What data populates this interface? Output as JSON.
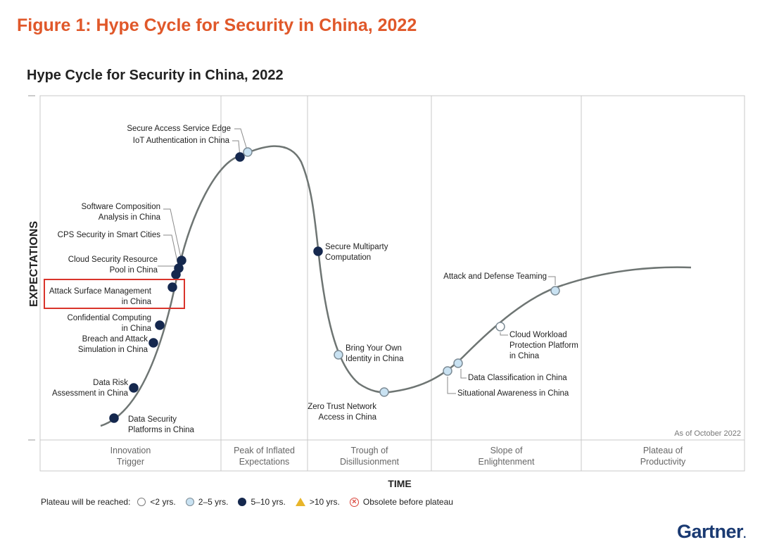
{
  "figure_title": "Figure 1: Hype Cycle for Security in China, 2022",
  "chart_data": {
    "type": "hype-cycle",
    "title": "Hype Cycle for Security in China, 2022",
    "ylabel": "EXPECTATIONS",
    "xlabel": "TIME",
    "as_of": "As of October 2022",
    "phases": [
      {
        "name": "Innovation Trigger",
        "lines": [
          "Innovation",
          "Trigger"
        ]
      },
      {
        "name": "Peak of Inflated Expectations",
        "lines": [
          "Peak of Inflated",
          "Expectations"
        ]
      },
      {
        "name": "Trough of Disillusionment",
        "lines": [
          "Trough of",
          "Disillusionment"
        ]
      },
      {
        "name": "Slope of Enlightenment",
        "lines": [
          "Slope of",
          "Enlightenment"
        ]
      },
      {
        "name": "Plateau of Productivity",
        "lines": [
          "Plateau of",
          "Productivity"
        ]
      }
    ],
    "technologies": [
      {
        "name": "Data Security Platforms in China",
        "lines": [
          "Data Security",
          "Platforms in China"
        ],
        "plateau": "5-10 yrs.",
        "phase": "Innovation Trigger",
        "highlighted": false
      },
      {
        "name": "Data Risk Assessment in China",
        "lines": [
          "Data Risk",
          "Assessment in China"
        ],
        "plateau": "5-10 yrs.",
        "phase": "Innovation Trigger",
        "highlighted": false
      },
      {
        "name": "Breach and Attack Simulation in China",
        "lines": [
          "Breach and Attack",
          "Simulation in China"
        ],
        "plateau": "5-10 yrs.",
        "phase": "Innovation Trigger",
        "highlighted": false
      },
      {
        "name": "Confidential Computing in China",
        "lines": [
          "Confidential Computing",
          "in China"
        ],
        "plateau": "5-10 yrs.",
        "phase": "Innovation Trigger",
        "highlighted": false
      },
      {
        "name": "Attack Surface Management in China",
        "lines": [
          "Attack Surface Management",
          "in China"
        ],
        "plateau": "5-10 yrs.",
        "phase": "Innovation Trigger",
        "highlighted": true
      },
      {
        "name": "Cloud Security Resource Pool in China",
        "lines": [
          "Cloud Security Resource",
          "Pool in China"
        ],
        "plateau": "5-10 yrs.",
        "phase": "Innovation Trigger",
        "highlighted": false
      },
      {
        "name": "CPS Security in Smart Cities",
        "lines": [
          "CPS Security in Smart Cities"
        ],
        "plateau": "5-10 yrs.",
        "phase": "Innovation Trigger",
        "highlighted": false
      },
      {
        "name": "Software Composition Analysis in China",
        "lines": [
          "Software Composition",
          "Analysis in China"
        ],
        "plateau": "5-10 yrs.",
        "phase": "Innovation Trigger",
        "highlighted": false
      },
      {
        "name": "IoT Authentication in China",
        "lines": [
          "IoT Authentication in China"
        ],
        "plateau": "5-10 yrs.",
        "phase": "Peak of Inflated Expectations",
        "highlighted": false
      },
      {
        "name": "Secure Access Service Edge",
        "lines": [
          "Secure Access Service Edge"
        ],
        "plateau": "2-5 yrs.",
        "phase": "Peak of Inflated Expectations",
        "highlighted": false
      },
      {
        "name": "Secure Multiparty Computation",
        "lines": [
          "Secure Multiparty",
          "Computation"
        ],
        "plateau": "5-10 yrs.",
        "phase": "Trough of Disillusionment",
        "highlighted": false
      },
      {
        "name": "Bring Your Own Identity in China",
        "lines": [
          "Bring Your Own",
          "Identity in China"
        ],
        "plateau": "2-5 yrs.",
        "phase": "Trough of Disillusionment",
        "highlighted": false
      },
      {
        "name": "Zero Trust Network Access in China",
        "lines": [
          "Zero Trust Network",
          "Access in China"
        ],
        "plateau": "2-5 yrs.",
        "phase": "Trough of Disillusionment",
        "highlighted": false
      },
      {
        "name": "Situational Awareness in China",
        "lines": [
          "Situational Awareness in China"
        ],
        "plateau": "2-5 yrs.",
        "phase": "Slope of Enlightenment",
        "highlighted": false
      },
      {
        "name": "Data Classification in China",
        "lines": [
          "Data Classification in China"
        ],
        "plateau": "2-5 yrs.",
        "phase": "Slope of Enlightenment",
        "highlighted": false
      },
      {
        "name": "Cloud Workload Protection Platform in China",
        "lines": [
          "Cloud Workload",
          "Protection Platform",
          "in China"
        ],
        "plateau": "<2 yrs.",
        "phase": "Slope of Enlightenment",
        "highlighted": false
      },
      {
        "name": "Attack and Defense Teaming",
        "lines": [
          "Attack and Defense Teaming"
        ],
        "plateau": "2-5 yrs.",
        "phase": "Slope of Enlightenment",
        "highlighted": false
      }
    ],
    "plateau_colors": {
      "<2 yrs.": "#ffffff",
      "2-5 yrs.": "#c9e2f2",
      "5-10 yrs.": "#15284e"
    },
    "highlight_color": "#d9342b",
    "curve_color": "#6e7573"
  },
  "legend": {
    "title": "Plateau will be reached:",
    "items": [
      {
        "label": "<2 yrs.",
        "symbol": "white-circle"
      },
      {
        "label": "2–5 yrs.",
        "symbol": "light-blue-circle"
      },
      {
        "label": "5–10 yrs.",
        "symbol": "dark-blue-circle"
      },
      {
        "label": ">10 yrs.",
        "symbol": "yellow-triangle"
      },
      {
        "label": "Obsolete before plateau",
        "symbol": "red-x-circle"
      }
    ]
  },
  "brand": {
    "name": "Gartner",
    "mark": ".",
    "color": "#1a3a72"
  },
  "figure_title_color": "#e0582a"
}
